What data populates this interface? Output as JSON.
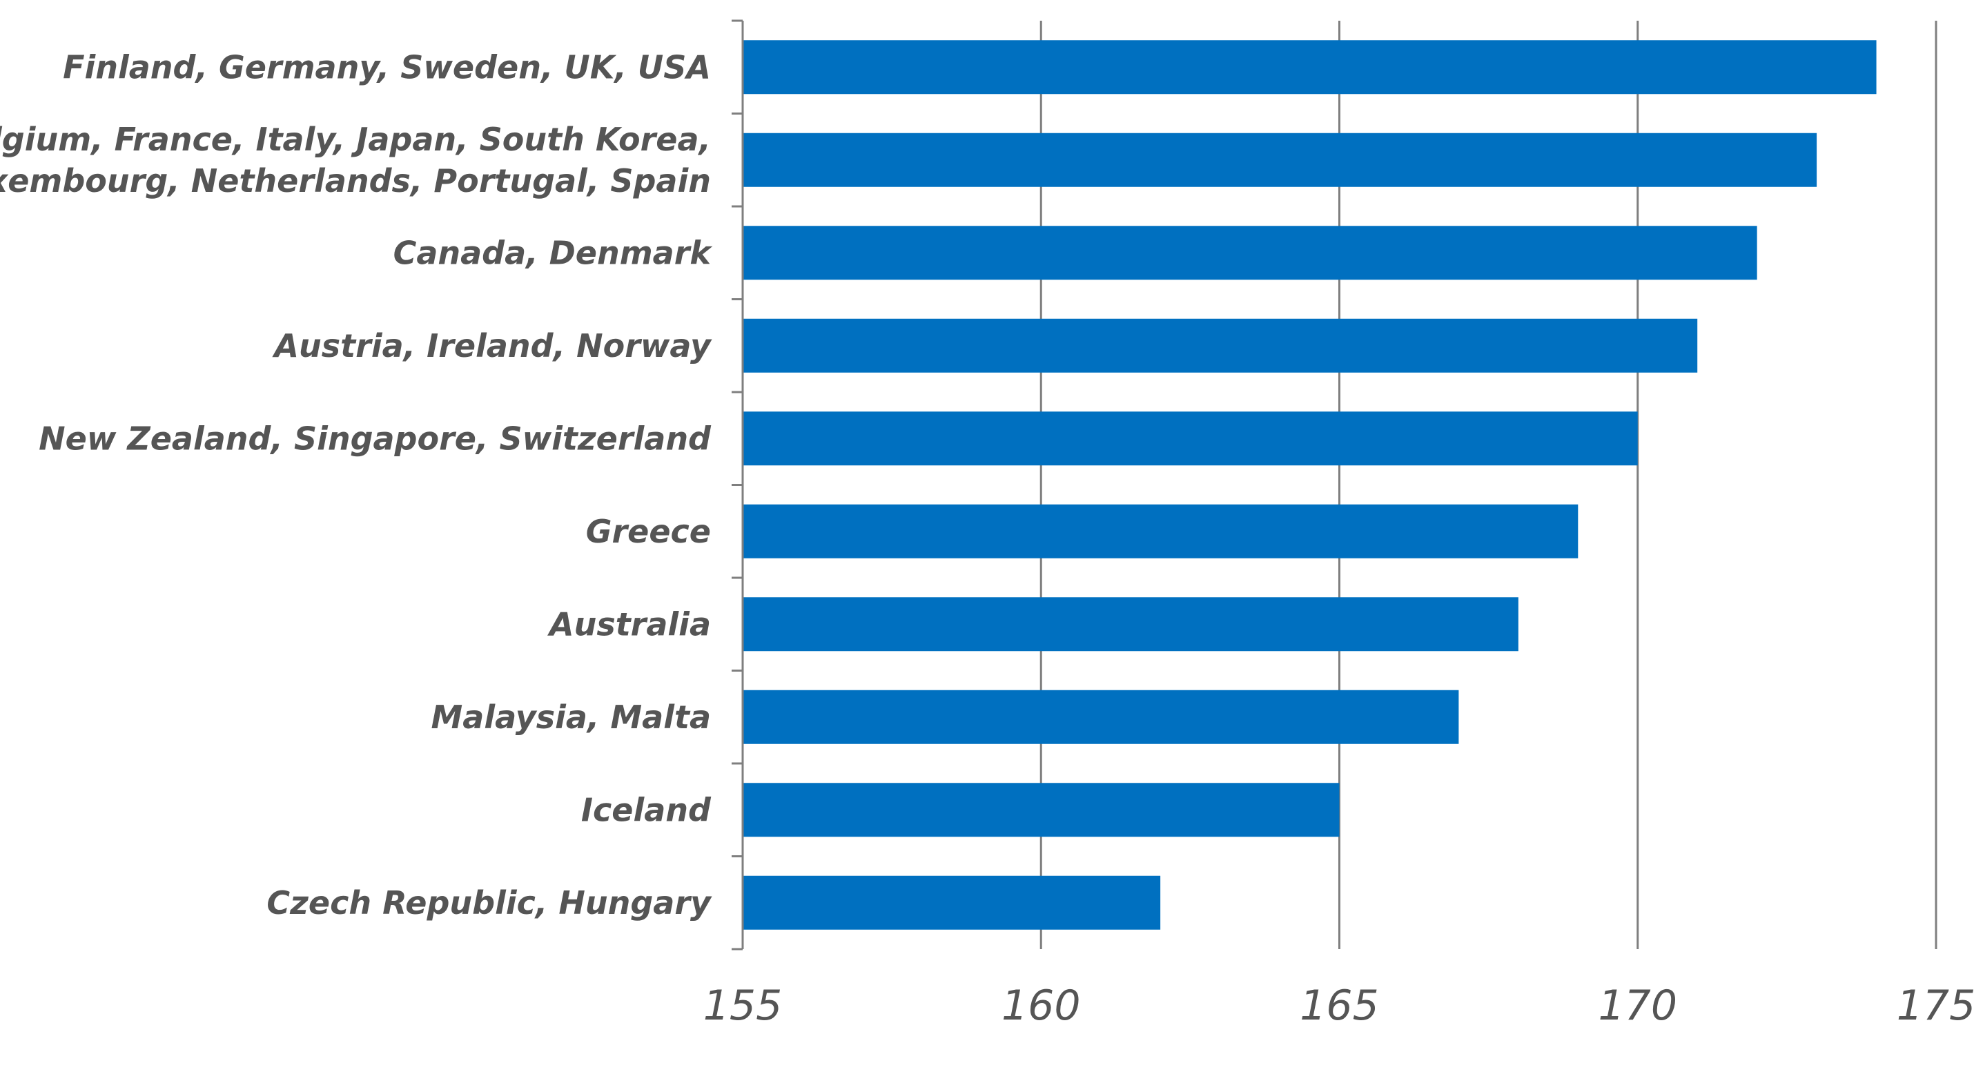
{
  "chart_data": {
    "type": "bar",
    "orientation": "horizontal",
    "categories": [
      [
        "Finland, Germany, Sweden, UK, USA"
      ],
      [
        "Belgium, France, Italy, Japan, South Korea,",
        "Luxembourg, Netherlands, Portugal, Spain"
      ],
      [
        "Canada, Denmark"
      ],
      [
        "Austria, Ireland, Norway"
      ],
      [
        "New Zealand, Singapore, Switzerland"
      ],
      [
        "Greece"
      ],
      [
        "Australia"
      ],
      [
        "Malaysia, Malta"
      ],
      [
        "Iceland"
      ],
      [
        "Czech Republic, Hungary"
      ]
    ],
    "values": [
      174,
      173,
      172,
      171,
      170,
      169,
      168,
      167,
      165,
      162
    ],
    "xlim": [
      155,
      175
    ],
    "xticks": [
      "155",
      "160",
      "165",
      "170",
      "175"
    ],
    "title": "",
    "xlabel": "",
    "ylabel": "",
    "grid": "vertical",
    "bar_color": "#0070c0",
    "grid_color": "#7f7f7f",
    "label_color": "#555555"
  }
}
